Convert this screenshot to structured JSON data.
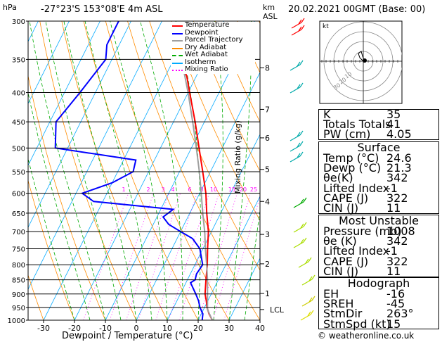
{
  "header": {
    "hpa_label": "hPa",
    "location": "-27°23'S 153°08'E 4m ASL",
    "km_label": "km",
    "asl_label": "ASL",
    "datetime": "20.02.2021 00GMT (Base: 00)"
  },
  "chart_data": {
    "type": "line",
    "title": "-27°23'S 153°08'E 4m ASL",
    "xlabel": "Dewpoint / Temperature (°C)",
    "ylabel": "hPa",
    "secondary_ylabel": "Mixing Ratio (g/kg)",
    "xlim": [
      -35,
      40
    ],
    "ylim": [
      1000,
      300
    ],
    "y_log": true,
    "skew": true,
    "x_ticks": [
      -30,
      -20,
      -10,
      0,
      10,
      20,
      30,
      40
    ],
    "y_ticks": [
      300,
      350,
      400,
      450,
      500,
      550,
      600,
      650,
      700,
      750,
      800,
      850,
      900,
      950,
      1000
    ],
    "km_ticks": [
      {
        "km": "8",
        "p": 362
      },
      {
        "km": "7",
        "p": 428
      },
      {
        "km": "6",
        "p": 480
      },
      {
        "km": "5",
        "p": 545
      },
      {
        "km": "4",
        "p": 620
      },
      {
        "km": "3",
        "p": 708
      },
      {
        "km": "2",
        "p": 797
      },
      {
        "km": "1",
        "p": 898
      },
      {
        "km": "LCL",
        "p": 958
      }
    ],
    "mixing_ratio_labels": [
      "1",
      "2",
      "3",
      "4",
      "6",
      "8",
      "10",
      "15",
      "20",
      "25"
    ],
    "legend": [
      {
        "name": "Temperature",
        "color": "#ff0000"
      },
      {
        "name": "Dewpoint",
        "color": "#0000ff"
      },
      {
        "name": "Parcel Trajectory",
        "color": "#a0a0a0"
      },
      {
        "name": "Dry Adiabat",
        "color": "#ff8c00"
      },
      {
        "name": "Wet Adiabat",
        "color": "#00aa00"
      },
      {
        "name": "Isotherm",
        "color": "#00aaff"
      },
      {
        "name": "Mixing Ratio",
        "color": "#ff00ff"
      }
    ],
    "legend_position": "top-left",
    "series": [
      {
        "name": "Temperature",
        "color": "#ff0000",
        "points": [
          [
            1000,
            24.6
          ],
          [
            975,
            22.5
          ],
          [
            950,
            20.8
          ],
          [
            925,
            19.5
          ],
          [
            900,
            18.0
          ],
          [
            850,
            16.0
          ],
          [
            800,
            14.0
          ],
          [
            750,
            11.5
          ],
          [
            700,
            9.0
          ],
          [
            650,
            5.5
          ],
          [
            600,
            2.0
          ],
          [
            550,
            -2.5
          ],
          [
            500,
            -7.5
          ],
          [
            450,
            -13.0
          ],
          [
            400,
            -19.5
          ],
          [
            375,
            -23.0
          ],
          [
            350,
            -28.0
          ]
        ]
      },
      {
        "name": "Dewpoint",
        "color": "#0000ff",
        "points": [
          [
            1000,
            21.3
          ],
          [
            975,
            20.5
          ],
          [
            950,
            18.5
          ],
          [
            925,
            17.0
          ],
          [
            900,
            15.0
          ],
          [
            860,
            11.5
          ],
          [
            850,
            12.5
          ],
          [
            830,
            12.0
          ],
          [
            800,
            12.5
          ],
          [
            750,
            9.0
          ],
          [
            720,
            5.0
          ],
          [
            700,
            0.0
          ],
          [
            680,
            -5.0
          ],
          [
            660,
            -8.0
          ],
          [
            640,
            -6.0
          ],
          [
            620,
            -33.0
          ],
          [
            600,
            -38.0
          ],
          [
            575,
            -30.0
          ],
          [
            550,
            -25.0
          ],
          [
            525,
            -26.0
          ],
          [
            500,
            -54.0
          ],
          [
            450,
            -58.0
          ],
          [
            400,
            -55.0
          ],
          [
            350,
            -52.0
          ],
          [
            330,
            -54.0
          ],
          [
            300,
            -54.0
          ]
        ]
      },
      {
        "name": "Parcel Trajectory",
        "color": "#a0a0a0",
        "points": [
          [
            1000,
            24.6
          ],
          [
            958,
            21.3
          ],
          [
            900,
            18.8
          ],
          [
            850,
            16.5
          ],
          [
            800,
            13.8
          ],
          [
            750,
            10.8
          ],
          [
            700,
            7.8
          ],
          [
            650,
            4.2
          ],
          [
            600,
            0.5
          ],
          [
            550,
            -3.6
          ],
          [
            500,
            -8.4
          ],
          [
            450,
            -13.8
          ],
          [
            400,
            -20.0
          ],
          [
            350,
            -27.5
          ]
        ]
      }
    ]
  },
  "hodograph": {
    "label": "kt",
    "ring_labels": [
      "10",
      "20",
      "30"
    ]
  },
  "stats": {
    "k_label": "K",
    "k_value": "35",
    "tt_label": "Totals Totals",
    "tt_value": "41",
    "pw_label": "PW (cm)",
    "pw_value": "4.05"
  },
  "surface": {
    "title": "Surface",
    "rows": [
      {
        "label": "Temp (°C)",
        "value": "24.6"
      },
      {
        "label": "Dewp (°C)",
        "value": "21.3"
      },
      {
        "label": "θe(K)",
        "value": "342"
      },
      {
        "label": "Lifted Index",
        "value": "-1"
      },
      {
        "label": "CAPE (J)",
        "value": "322"
      },
      {
        "label": "CIN (J)",
        "value": "11"
      }
    ]
  },
  "most_unstable": {
    "title": "Most Unstable",
    "rows": [
      {
        "label": "Pressure (mb)",
        "value": "1008"
      },
      {
        "label": "θe (K)",
        "value": "342"
      },
      {
        "label": "Lifted Index",
        "value": "-1"
      },
      {
        "label": "CAPE (J)",
        "value": "322"
      },
      {
        "label": "CIN (J)",
        "value": "11"
      }
    ]
  },
  "hodograph_table": {
    "title": "Hodograph",
    "rows": [
      {
        "label": "EH",
        "value": "-16"
      },
      {
        "label": "SREH",
        "value": "-45"
      },
      {
        "label": "StmDir",
        "value": "263°"
      },
      {
        "label": "StmSpd (kt)",
        "value": "15"
      }
    ]
  },
  "footer": {
    "copyright": "© weatheronline.co.uk"
  }
}
